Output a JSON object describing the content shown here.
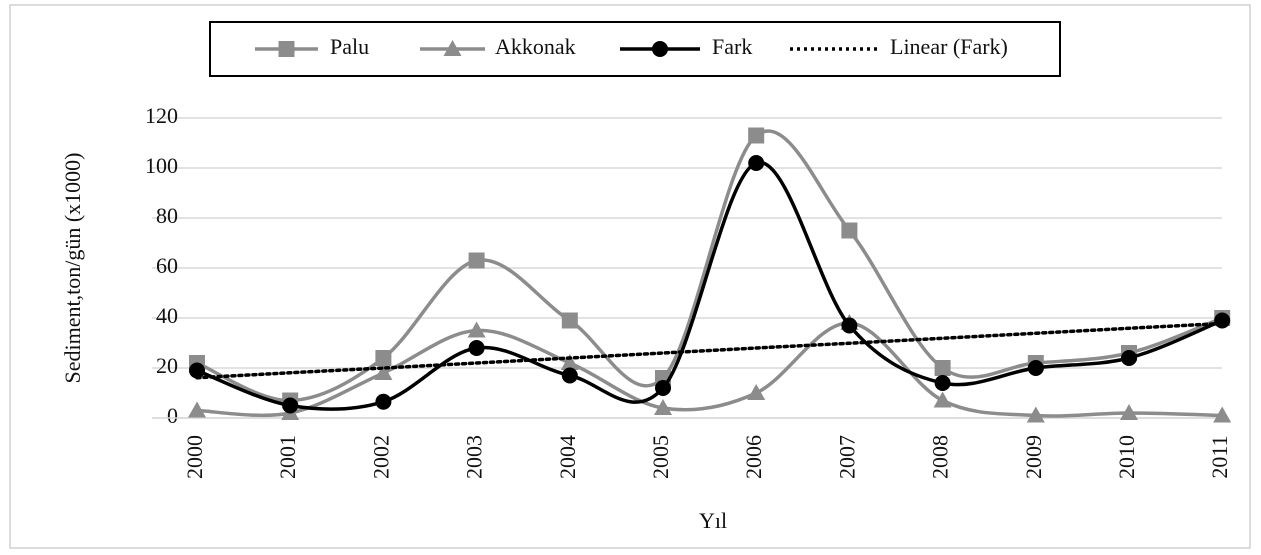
{
  "chart_data": {
    "type": "line",
    "x_label": "Yıl",
    "y_label": "Sediment,ton/gün (x1000)",
    "categories": [
      "2000",
      "2001",
      "2002",
      "2003",
      "2004",
      "2005",
      "2006",
      "2007",
      "2008",
      "2009",
      "2010",
      "2011"
    ],
    "series": [
      {
        "name": "Palu",
        "color": "#8c8c8c",
        "marker": "square",
        "dash": "solid",
        "smooth": true,
        "values": [
          22,
          7,
          24,
          63,
          39,
          16,
          113,
          75,
          20,
          22,
          26,
          40
        ]
      },
      {
        "name": "Akkonak",
        "color": "#8c8c8c",
        "marker": "triangle",
        "dash": "solid",
        "smooth": true,
        "values": [
          3,
          2,
          18,
          35,
          22,
          4,
          10,
          38,
          7,
          1,
          2,
          1
        ]
      },
      {
        "name": "Fark",
        "color": "#000000",
        "marker": "circle",
        "dash": "solid",
        "smooth": true,
        "values": [
          19,
          5,
          6.5,
          28,
          17,
          12,
          102,
          37,
          14,
          20,
          24,
          39
        ]
      },
      {
        "name": "Linear (Fark)",
        "color": "#000000",
        "marker": "none",
        "dash": "dotted",
        "smooth": false,
        "values": [
          16.1,
          18.1,
          20.0,
          22.0,
          24.0,
          26.0,
          28.0,
          29.9,
          31.9,
          33.9,
          35.9,
          37.8
        ]
      }
    ],
    "ylim": [
      0,
      120
    ],
    "yticks": [
      0,
      20,
      40,
      60,
      80,
      100,
      120
    ],
    "grid": true,
    "legend": "top"
  }
}
